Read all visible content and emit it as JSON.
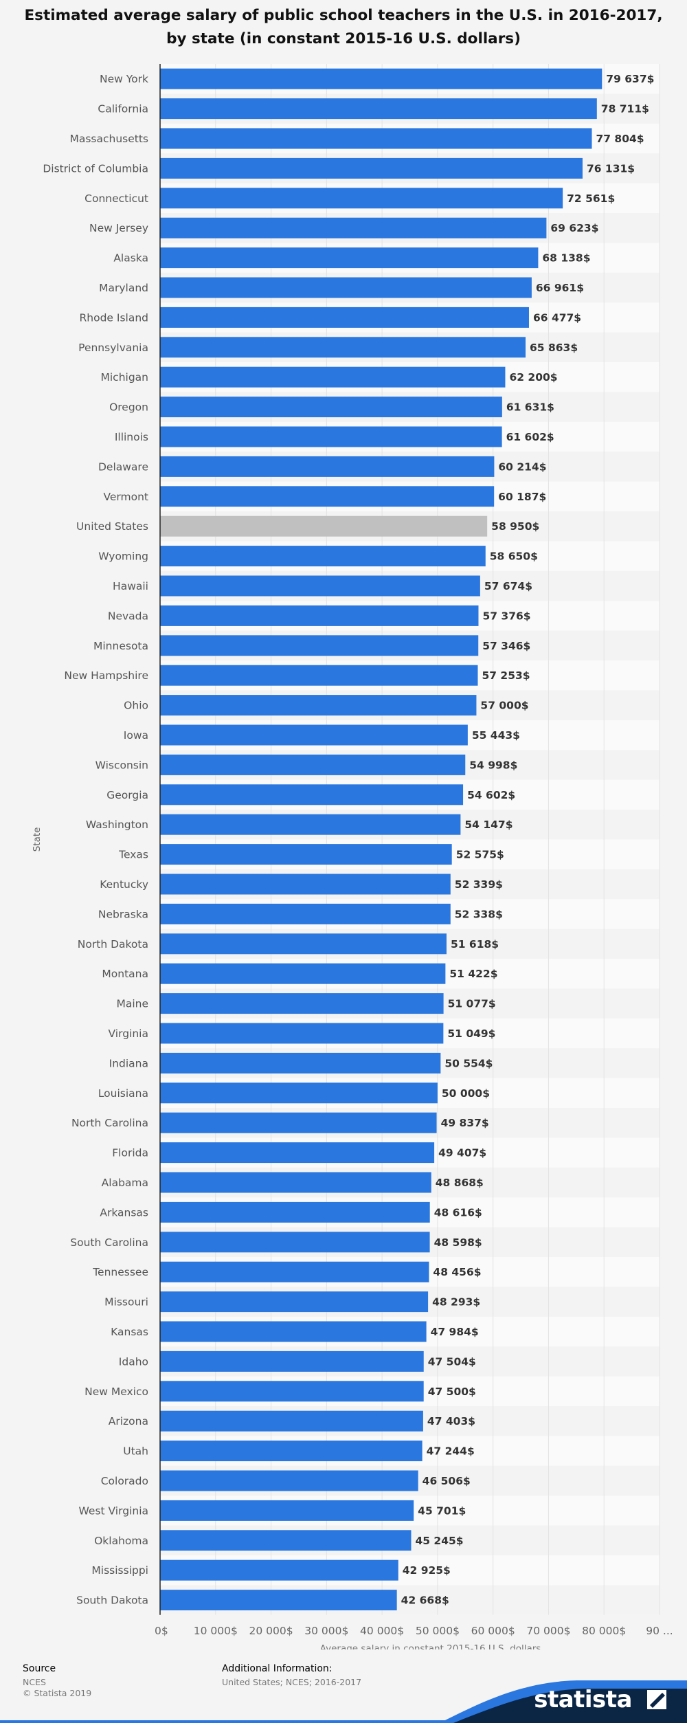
{
  "chart_data": {
    "type": "bar",
    "orientation": "horizontal",
    "title": "Estimated average salary of public school teachers in the U.S. in 2016-2017, by state (in constant 2015-16 U.S. dollars)",
    "xlabel": "Average salary in constant 2015-16 U.S. dollars",
    "ylabel": "State",
    "xlim": [
      0,
      90000
    ],
    "grid": true,
    "xticks": [
      "0$",
      "10 000$",
      "20 000$",
      "30 000$",
      "40 000$",
      "50 000$",
      "60 000$",
      "70 000$",
      "80 000$",
      "90 ..."
    ],
    "colors": {
      "bar": "#2a77df",
      "highlight": "#c0c0c0",
      "highlight_category": "United States"
    },
    "categories": [
      "New York",
      "California",
      "Massachusetts",
      "District of Columbia",
      "Connecticut",
      "New Jersey",
      "Alaska",
      "Maryland",
      "Rhode Island",
      "Pennsylvania",
      "Michigan",
      "Oregon",
      "Illinois",
      "Delaware",
      "Vermont",
      "United States",
      "Wyoming",
      "Hawaii",
      "Nevada",
      "Minnesota",
      "New Hampshire",
      "Ohio",
      "Iowa",
      "Wisconsin",
      "Georgia",
      "Washington",
      "Texas",
      "Kentucky",
      "Nebraska",
      "North Dakota",
      "Montana",
      "Maine",
      "Virginia",
      "Indiana",
      "Louisiana",
      "North Carolina",
      "Florida",
      "Alabama",
      "Arkansas",
      "South Carolina",
      "Tennessee",
      "Missouri",
      "Kansas",
      "Idaho",
      "New Mexico",
      "Arizona",
      "Utah",
      "Colorado",
      "West Virginia",
      "Oklahoma",
      "Mississippi",
      "South Dakota"
    ],
    "values": [
      79637,
      78711,
      77804,
      76131,
      72561,
      69623,
      68138,
      66961,
      66477,
      65863,
      62200,
      61631,
      61602,
      60214,
      60187,
      58950,
      58650,
      57674,
      57376,
      57346,
      57253,
      57000,
      55443,
      54998,
      54602,
      54147,
      52575,
      52339,
      52338,
      51618,
      51422,
      51077,
      51049,
      50554,
      50000,
      49837,
      49407,
      48868,
      48616,
      48598,
      48456,
      48293,
      47984,
      47504,
      47500,
      47403,
      47244,
      46506,
      45701,
      45245,
      42925,
      42668
    ],
    "value_labels": [
      "79 637$",
      "78 711$",
      "77 804$",
      "76 131$",
      "72 561$",
      "69 623$",
      "68 138$",
      "66 961$",
      "66 477$",
      "65 863$",
      "62 200$",
      "61 631$",
      "61 602$",
      "60 214$",
      "60 187$",
      "58 950$",
      "58 650$",
      "57 674$",
      "57 376$",
      "57 346$",
      "57 253$",
      "57 000$",
      "55 443$",
      "54 998$",
      "54 602$",
      "54 147$",
      "52 575$",
      "52 339$",
      "52 338$",
      "51 618$",
      "51 422$",
      "51 077$",
      "51 049$",
      "50 554$",
      "50 000$",
      "49 837$",
      "49 407$",
      "48 868$",
      "48 616$",
      "48 598$",
      "48 456$",
      "48 293$",
      "47 984$",
      "47 504$",
      "47 500$",
      "47 403$",
      "47 244$",
      "46 506$",
      "45 701$",
      "45 245$",
      "42 925$",
      "42 668$"
    ]
  },
  "footer": {
    "source_heading": "Source",
    "source_lines": [
      "NCES",
      "© Statista 2019"
    ],
    "info_heading": "Additional Information:",
    "info_line": "United States; NCES; 2016-2017",
    "brand": "statista"
  }
}
